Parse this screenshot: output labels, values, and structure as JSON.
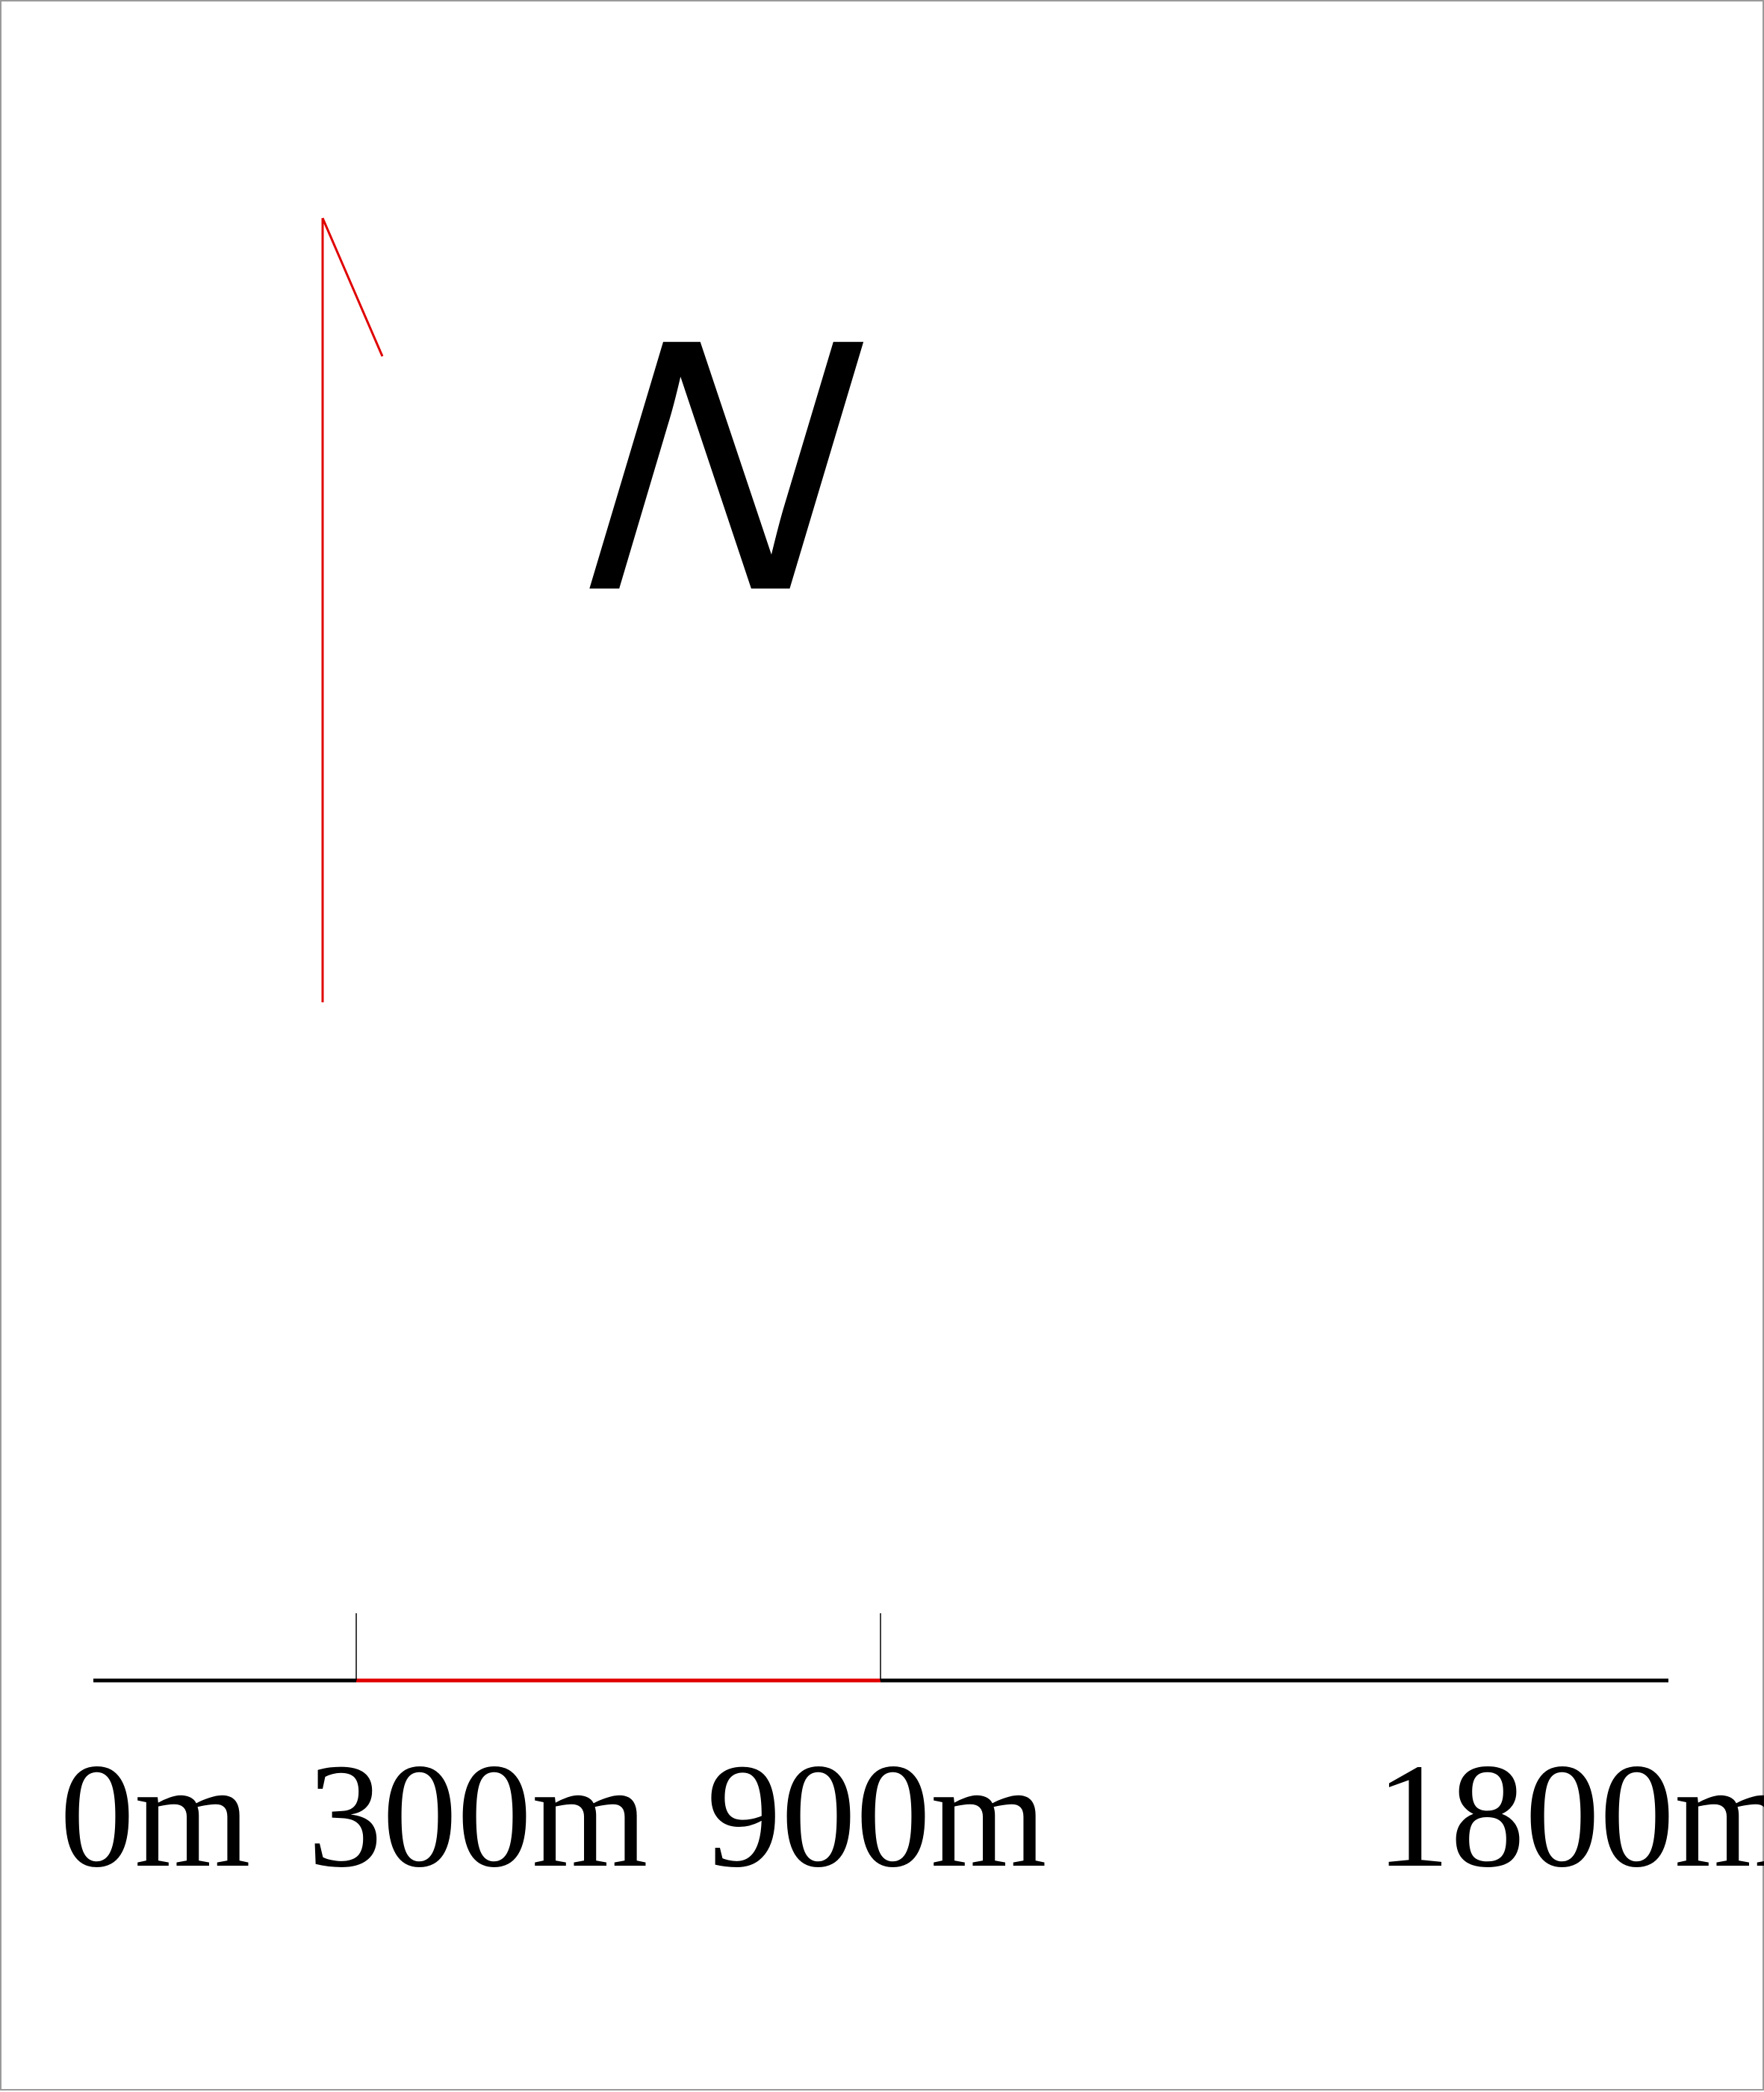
{
  "north_arrow": {
    "letter": "N",
    "arrow_color": "#e00000"
  },
  "scale_bar": {
    "bar_color": "#000000",
    "highlight_color": "#e00000",
    "ticks": [
      {
        "value": 0,
        "label": "0m"
      },
      {
        "value": 300,
        "label": "300m"
      },
      {
        "value": 900,
        "label": "900m"
      },
      {
        "value": 1800,
        "label": "1800m"
      }
    ],
    "highlighted_segment": [
      300,
      900
    ]
  }
}
